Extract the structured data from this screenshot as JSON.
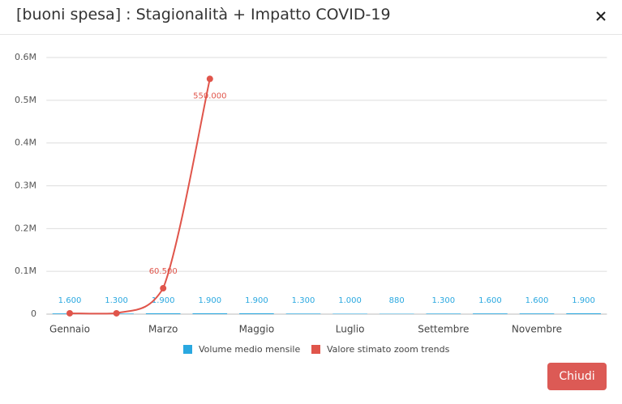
{
  "dialog": {
    "title": "[buoni spesa] : Stagionalità + Impatto COVID-19",
    "button": "Chiudi"
  },
  "chart_data": {
    "type": "bar-line",
    "categories": [
      "Gennaio",
      null,
      "Marzo",
      null,
      "Maggio",
      null,
      "Luglio",
      null,
      "Settembre",
      null,
      "Novembre",
      null
    ],
    "series": [
      {
        "name": "Volume medio mensile",
        "type": "bar",
        "color": "#2aa8e0",
        "values": [
          1600,
          1300,
          1900,
          1900,
          1900,
          1300,
          1000,
          880,
          1300,
          1600,
          1600,
          1900
        ],
        "value_labels": [
          "1.600",
          "1.300",
          "1.900",
          "1.900",
          "1.900",
          "1.300",
          "1.000",
          "880",
          "1.300",
          "1.600",
          "1.600",
          "1.900"
        ]
      },
      {
        "name": "Valore stimato zoom trends",
        "type": "line",
        "color": "#e0554b",
        "values": [
          2000,
          2000,
          60500,
          550000,
          null,
          null,
          null,
          null,
          null,
          null,
          null,
          null
        ],
        "value_labels": [
          null,
          null,
          "60.500",
          "550.000",
          null,
          null,
          null,
          null,
          null,
          null,
          null,
          null
        ]
      }
    ],
    "ylim": [
      0,
      600000
    ],
    "yticks": [
      0,
      {
        "value": 100000,
        "label": "0.1M"
      },
      {
        "value": 200000,
        "label": "0.2M"
      },
      {
        "value": 300000,
        "label": "0.3M"
      },
      {
        "value": 400000,
        "label": "0.4M"
      },
      {
        "value": 500000,
        "label": "0.5M"
      },
      {
        "value": 600000,
        "label": "0.6M"
      }
    ],
    "grid": true,
    "legend": "bottom"
  }
}
